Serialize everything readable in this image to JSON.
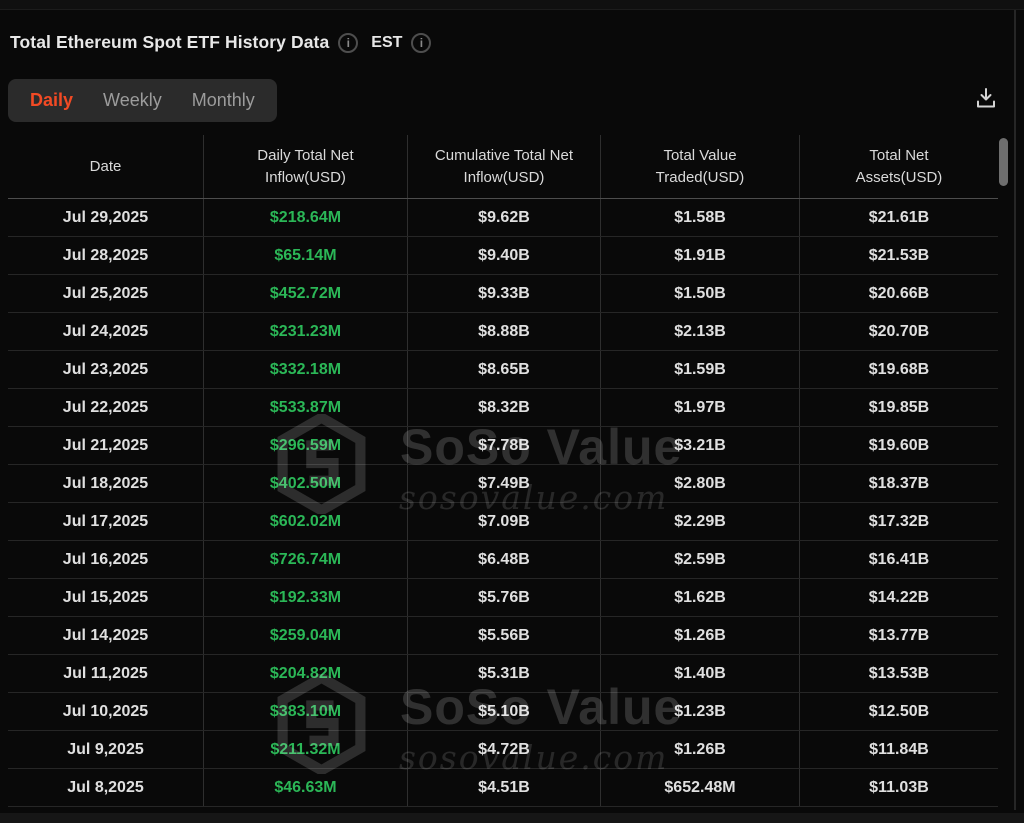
{
  "page": {
    "title": "Total Ethereum Spot ETF History Data",
    "timezone": "EST",
    "info_glyph": "i"
  },
  "tabs": [
    {
      "label": "Daily",
      "active": true
    },
    {
      "label": "Weekly",
      "active": false
    },
    {
      "label": "Monthly",
      "active": false
    }
  ],
  "icons": {
    "title_info": "info-icon",
    "timezone_info": "info-icon",
    "export": "download-icon"
  },
  "colors": {
    "background": "#0a0a0a",
    "accent_orange": "#f24a24",
    "positive_green": "#2bb757",
    "tab_bar_bg": "#2b2b2b",
    "watermark_gray": "rgba(255,255,255,0.16)"
  },
  "watermark": {
    "brand": "SoSo Value",
    "domain": "sosovalue.com"
  },
  "table": {
    "green_column_index": 1,
    "columns": [
      {
        "lines": [
          "Date"
        ]
      },
      {
        "lines": [
          "Daily Total Net",
          "Inflow(USD)"
        ]
      },
      {
        "lines": [
          "Cumulative Total Net",
          "Inflow(USD)"
        ]
      },
      {
        "lines": [
          "Total Value",
          "Traded(USD)"
        ]
      },
      {
        "lines": [
          "Total Net",
          "Assets(USD)"
        ]
      }
    ],
    "rows": [
      {
        "cells": [
          "Jul 29,2025",
          "$218.64M",
          "$9.62B",
          "$1.58B",
          "$21.61B"
        ]
      },
      {
        "cells": [
          "Jul 28,2025",
          "$65.14M",
          "$9.40B",
          "$1.91B",
          "$21.53B"
        ]
      },
      {
        "cells": [
          "Jul 25,2025",
          "$452.72M",
          "$9.33B",
          "$1.50B",
          "$20.66B"
        ]
      },
      {
        "cells": [
          "Jul 24,2025",
          "$231.23M",
          "$8.88B",
          "$2.13B",
          "$20.70B"
        ]
      },
      {
        "cells": [
          "Jul 23,2025",
          "$332.18M",
          "$8.65B",
          "$1.59B",
          "$19.68B"
        ]
      },
      {
        "cells": [
          "Jul 22,2025",
          "$533.87M",
          "$8.32B",
          "$1.97B",
          "$19.85B"
        ]
      },
      {
        "cells": [
          "Jul 21,2025",
          "$296.59M",
          "$7.78B",
          "$3.21B",
          "$19.60B"
        ]
      },
      {
        "cells": [
          "Jul 18,2025",
          "$402.50M",
          "$7.49B",
          "$2.80B",
          "$18.37B"
        ]
      },
      {
        "cells": [
          "Jul 17,2025",
          "$602.02M",
          "$7.09B",
          "$2.29B",
          "$17.32B"
        ]
      },
      {
        "cells": [
          "Jul 16,2025",
          "$726.74M",
          "$6.48B",
          "$2.59B",
          "$16.41B"
        ]
      },
      {
        "cells": [
          "Jul 15,2025",
          "$192.33M",
          "$5.76B",
          "$1.62B",
          "$14.22B"
        ]
      },
      {
        "cells": [
          "Jul 14,2025",
          "$259.04M",
          "$5.56B",
          "$1.26B",
          "$13.77B"
        ]
      },
      {
        "cells": [
          "Jul 11,2025",
          "$204.82M",
          "$5.31B",
          "$1.40B",
          "$13.53B"
        ]
      },
      {
        "cells": [
          "Jul 10,2025",
          "$383.10M",
          "$5.10B",
          "$1.23B",
          "$12.50B"
        ]
      },
      {
        "cells": [
          "Jul 9,2025",
          "$211.32M",
          "$4.72B",
          "$1.26B",
          "$11.84B"
        ]
      },
      {
        "cells": [
          "Jul 8,2025",
          "$46.63M",
          "$4.51B",
          "$652.48M",
          "$11.03B"
        ]
      }
    ]
  }
}
